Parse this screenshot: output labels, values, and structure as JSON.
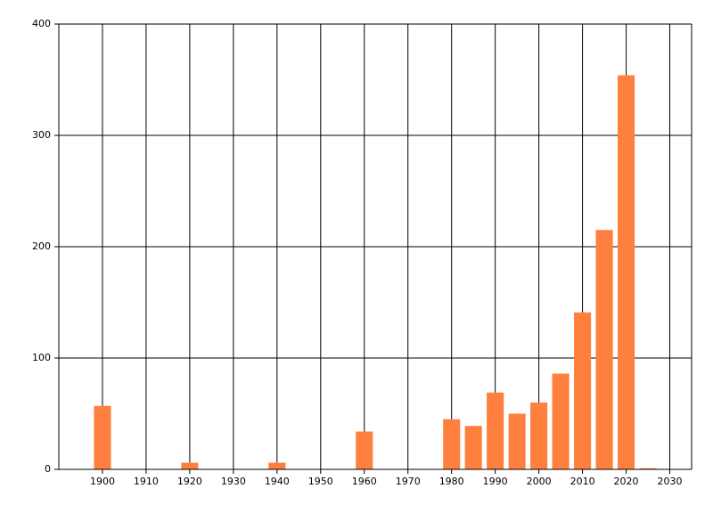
{
  "chart_data": {
    "type": "bar",
    "x": [
      1900,
      1920,
      1940,
      1960,
      1980,
      1985,
      1990,
      1995,
      2000,
      2005,
      2010,
      2015,
      2020,
      2025
    ],
    "values": [
      57,
      6,
      6,
      34,
      45,
      39,
      69,
      50,
      60,
      86,
      141,
      215,
      354,
      1
    ],
    "color": "#ff7f3f",
    "xlim": [
      1890,
      2035
    ],
    "xticks": [
      1900,
      1910,
      1920,
      1930,
      1940,
      1950,
      1960,
      1970,
      1980,
      1990,
      2000,
      2010,
      2020,
      2030
    ],
    "ylim": [
      0,
      400
    ],
    "yticks": [
      0,
      100,
      200,
      300,
      400
    ],
    "grid": true
  }
}
